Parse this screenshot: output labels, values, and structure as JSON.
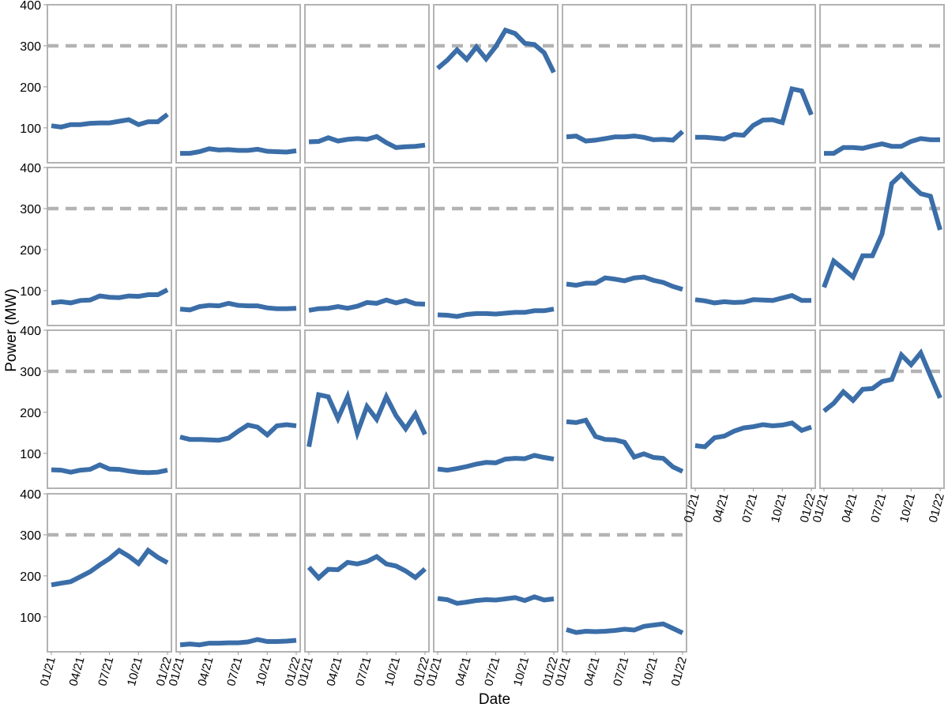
{
  "chart_data": {
    "type": "line",
    "layout": "small-multiples",
    "xlabel": "Date",
    "ylabel": "Power (MW)",
    "x": [
      "2021-01",
      "2021-02",
      "2021-03",
      "2021-04",
      "2021-05",
      "2021-06",
      "2021-07",
      "2021-08",
      "2021-09",
      "2021-10",
      "2021-11",
      "2021-12",
      "2022-01"
    ],
    "x_ticks": [
      "01/21",
      "04/21",
      "07/21",
      "10/21",
      "01/22"
    ],
    "y_ticks": [
      100,
      200,
      300,
      400
    ],
    "ylim": [
      15,
      400
    ],
    "reference_line": {
      "y": 300,
      "style": "dashed",
      "color": "#b3b3b3"
    },
    "grid": false,
    "line_color": "#3b6ea8",
    "panel_border_color": "#b3b3b3",
    "panels": [
      {
        "values": [
          105,
          102,
          108,
          108,
          111,
          112,
          112,
          116,
          120,
          108,
          115,
          115,
          133
        ]
      },
      {
        "values": [
          38,
          38,
          42,
          49,
          46,
          47,
          45,
          45,
          48,
          43,
          42,
          41,
          44
        ]
      },
      {
        "values": [
          66,
          67,
          76,
          68,
          72,
          74,
          72,
          79,
          64,
          52,
          54,
          55,
          58
        ]
      },
      {
        "values": [
          245,
          265,
          290,
          267,
          297,
          268,
          298,
          338,
          330,
          306,
          303,
          283,
          235
        ]
      },
      {
        "values": [
          78,
          80,
          68,
          70,
          74,
          78,
          78,
          80,
          77,
          71,
          72,
          70,
          91
        ]
      },
      {
        "values": [
          77,
          77,
          75,
          73,
          84,
          82,
          106,
          119,
          120,
          113,
          195,
          190,
          132
        ]
      },
      {
        "values": [
          38,
          38,
          52,
          52,
          50,
          56,
          61,
          55,
          55,
          67,
          74,
          71,
          71
        ]
      },
      {
        "values": [
          70,
          73,
          70,
          76,
          77,
          87,
          84,
          83,
          87,
          86,
          90,
          90,
          102
        ]
      },
      {
        "values": [
          55,
          53,
          61,
          64,
          63,
          69,
          64,
          63,
          63,
          58,
          56,
          56,
          57
        ]
      },
      {
        "values": [
          52,
          56,
          57,
          61,
          57,
          62,
          71,
          69,
          77,
          70,
          76,
          68,
          67
        ]
      },
      {
        "values": [
          41,
          40,
          37,
          42,
          44,
          44,
          43,
          45,
          47,
          47,
          51,
          51,
          55
        ]
      },
      {
        "values": [
          116,
          113,
          118,
          118,
          131,
          128,
          124,
          131,
          133,
          125,
          120,
          110,
          103
        ]
      },
      {
        "values": [
          78,
          75,
          70,
          73,
          71,
          72,
          78,
          77,
          76,
          82,
          88,
          76,
          76
        ]
      },
      {
        "values": [
          108,
          172,
          153,
          133,
          185,
          185,
          238,
          361,
          383,
          358,
          336,
          330,
          248
        ]
      },
      {
        "values": [
          60,
          59,
          54,
          59,
          61,
          72,
          62,
          61,
          57,
          54,
          53,
          54,
          59
        ]
      },
      {
        "values": [
          140,
          134,
          134,
          133,
          132,
          137,
          154,
          169,
          164,
          145,
          167,
          170,
          167
        ]
      },
      {
        "values": [
          116,
          243,
          238,
          185,
          238,
          150,
          214,
          183,
          238,
          192,
          160,
          196,
          146
        ]
      },
      {
        "values": [
          62,
          59,
          63,
          68,
          74,
          78,
          77,
          86,
          88,
          87,
          95,
          90,
          86
        ]
      },
      {
        "values": [
          177,
          175,
          181,
          141,
          134,
          133,
          127,
          91,
          99,
          90,
          88,
          67,
          56
        ]
      },
      {
        "values": [
          119,
          116,
          138,
          142,
          154,
          162,
          165,
          170,
          167,
          169,
          174,
          156,
          164
        ]
      },
      {
        "values": [
          203,
          222,
          250,
          229,
          256,
          258,
          275,
          280,
          340,
          316,
          345,
          289,
          235
        ]
      },
      {
        "values": [
          178,
          182,
          186,
          198,
          210,
          227,
          242,
          262,
          248,
          230,
          262,
          245,
          232
        ]
      },
      {
        "values": [
          32,
          34,
          32,
          36,
          36,
          37,
          37,
          39,
          45,
          40,
          40,
          41,
          43
        ]
      },
      {
        "values": [
          221,
          195,
          216,
          215,
          233,
          229,
          235,
          247,
          229,
          224,
          212,
          196,
          217
        ]
      },
      {
        "values": [
          145,
          142,
          133,
          136,
          140,
          142,
          141,
          144,
          147,
          140,
          149,
          141,
          144
        ]
      },
      {
        "values": [
          69,
          62,
          65,
          64,
          65,
          67,
          70,
          68,
          77,
          80,
          83,
          72,
          61
        ]
      }
    ]
  }
}
